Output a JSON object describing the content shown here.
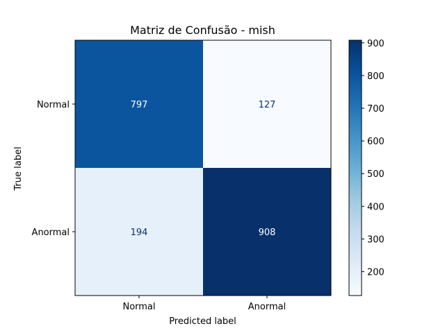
{
  "chart_data": {
    "type": "heatmap",
    "title": "Matriz de Confusão - mish",
    "xlabel": "Predicted label",
    "ylabel": "True label",
    "row_labels": [
      "Normal",
      "Anormal"
    ],
    "col_labels": [
      "Normal",
      "Anormal"
    ],
    "values": [
      [
        797,
        127
      ],
      [
        194,
        908
      ]
    ],
    "colormap": "Blues",
    "colorbar": {
      "min": 127,
      "max": 908,
      "ticks": [
        200,
        300,
        400,
        500,
        600,
        700,
        800,
        900
      ]
    }
  }
}
